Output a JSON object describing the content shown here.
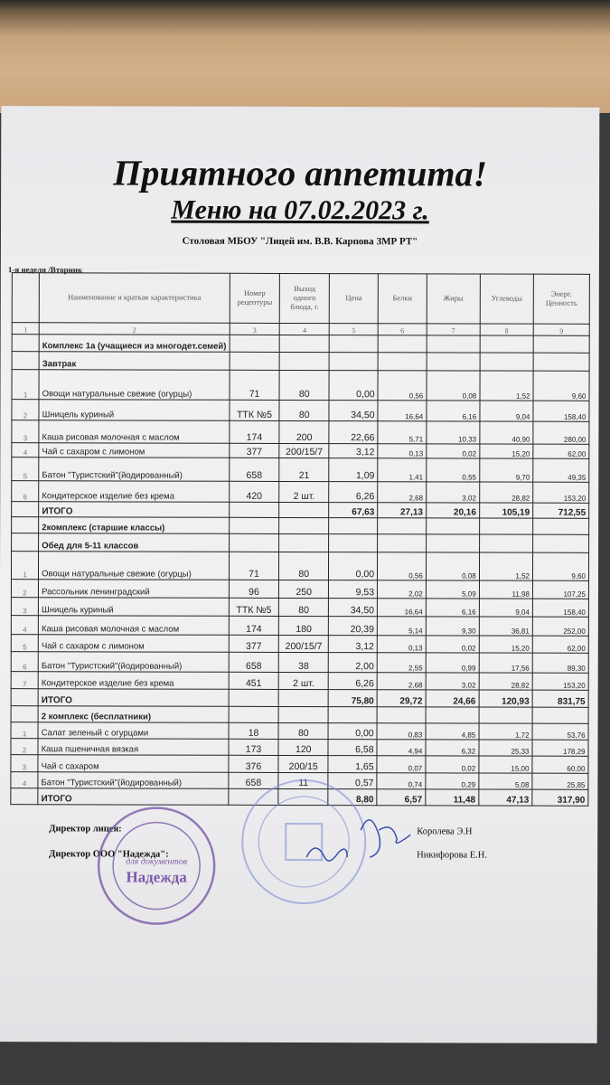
{
  "header": {
    "title": "Приятного аппетита!",
    "subtitle": "Меню на 07.02.2023 г.",
    "org": "Столовая МБОУ \"Лицей им. В.В. Карпова ЗМР РТ\"",
    "week": "1-я неделя /Вторник"
  },
  "table": {
    "columns": [
      "",
      "Наименование и краткая характеристика",
      "Номер рецептуры",
      "Выход одного блюда, г.",
      "Цена",
      "Белки",
      "Жиры",
      "Углеводы",
      "Энерг. Ценность"
    ],
    "column_numbers": [
      "1",
      "2",
      "3",
      "4",
      "5",
      "6",
      "7",
      "8",
      "9"
    ],
    "rows": [
      {
        "type": "sec",
        "name": "Комплекс 1а  (учащиеся из многодет.семей)"
      },
      {
        "type": "sec",
        "name": "Завтрак"
      },
      {
        "type": "item",
        "n": "1",
        "name": "Овощи натуральные свежие (огурцы)",
        "rec": "71",
        "out": "80",
        "price": "0,00",
        "p": "0,56",
        "f": "0,08",
        "c": "1,52",
        "e": "9,60"
      },
      {
        "type": "item",
        "n": "2",
        "name": "Шницель куриный",
        "rec": "ТТК №5",
        "out": "80",
        "price": "34,50",
        "p": "16,64",
        "f": "6,16",
        "c": "9,04",
        "e": "158,40"
      },
      {
        "type": "item",
        "n": "3",
        "name": "Каша рисовая молочная с маслом",
        "rec": "174",
        "out": "200",
        "price": "22,66",
        "p": "5,71",
        "f": "10,33",
        "c": "40,90",
        "e": "280,00"
      },
      {
        "type": "item",
        "n": "4",
        "name": "Чай с сахаром с лимоном",
        "rec": "377",
        "out": "200/15/7",
        "price": "3,12",
        "p": "0,13",
        "f": "0,02",
        "c": "15,20",
        "e": "62,00"
      },
      {
        "type": "item",
        "n": "5",
        "name": "Батон \"Туристский\"(йодированный)",
        "rec": "658",
        "out": "21",
        "price": "1,09",
        "p": "1,41",
        "f": "0,55",
        "c": "9,70",
        "e": "49,35"
      },
      {
        "type": "item",
        "n": "6",
        "name": "Кондитерское изделие без крема",
        "rec": "420",
        "out": "2 шт.",
        "price": "6,26",
        "p": "2,68",
        "f": "3,02",
        "c": "28,82",
        "e": "153,20"
      },
      {
        "type": "tot",
        "name": "ИТОГО",
        "price": "67,63",
        "p": "27,13",
        "f": "20,16",
        "c": "105,19",
        "e": "712,55"
      },
      {
        "type": "sec",
        "name": "2комплекс (старшие классы)"
      },
      {
        "type": "sec",
        "name": "Обед для 5-11 классов"
      },
      {
        "type": "item",
        "n": "1",
        "name": "Овощи натуральные свежие (огурцы)",
        "rec": "71",
        "out": "80",
        "price": "0,00",
        "p": "0,56",
        "f": "0,08",
        "c": "1,52",
        "e": "9,60"
      },
      {
        "type": "item",
        "n": "2",
        "name": "Рассольник ленинградский",
        "rec": "96",
        "out": "250",
        "price": "9,53",
        "p": "2,02",
        "f": "5,09",
        "c": "11,98",
        "e": "107,25"
      },
      {
        "type": "item",
        "n": "3",
        "name": "Шницель куриный",
        "rec": "ТТК №5",
        "out": "80",
        "price": "34,50",
        "p": "16,64",
        "f": "6,16",
        "c": "9,04",
        "e": "158,40"
      },
      {
        "type": "item",
        "n": "4",
        "name": "Каша рисовая молочная с маслом",
        "rec": "174",
        "out": "180",
        "price": "20,39",
        "p": "5,14",
        "f": "9,30",
        "c": "36,81",
        "e": "252,00"
      },
      {
        "type": "item",
        "n": "5",
        "name": "Чай с сахаром с лимоном",
        "rec": "377",
        "out": "200/15/7",
        "price": "3,12",
        "p": "0,13",
        "f": "0,02",
        "c": "15,20",
        "e": "62,00"
      },
      {
        "type": "item",
        "n": "6",
        "name": "Батон \"Туристский\"(йодированный)",
        "rec": "658",
        "out": "38",
        "price": "2,00",
        "p": "2,55",
        "f": "0,99",
        "c": "17,56",
        "e": "89,30"
      },
      {
        "type": "item",
        "n": "7",
        "name": "Кондитерское изделие без крема",
        "rec": "451",
        "out": "2 шт.",
        "price": "6,26",
        "p": "2,68",
        "f": "3,02",
        "c": "28,82",
        "e": "153,20"
      },
      {
        "type": "tot",
        "name": "ИТОГО",
        "price": "75,80",
        "p": "29,72",
        "f": "24,66",
        "c": "120,93",
        "e": "831,75"
      },
      {
        "type": "sec",
        "name": "2 комплекс (бесплатники)"
      },
      {
        "type": "item",
        "n": "1",
        "name": "Салат зеленый с огурцами",
        "rec": "18",
        "out": "80",
        "price": "0,00",
        "p": "0,83",
        "f": "4,85",
        "c": "1,72",
        "e": "53,76"
      },
      {
        "type": "item",
        "n": "2",
        "name": "Каша пшеничная вязкая",
        "rec": "173",
        "out": "120",
        "price": "6,58",
        "p": "4,94",
        "f": "6,32",
        "c": "25,33",
        "e": "178,29"
      },
      {
        "type": "item",
        "n": "3",
        "name": "Чай с сахаром",
        "rec": "376",
        "out": "200/15",
        "price": "1,65",
        "p": "0,07",
        "f": "0,02",
        "c": "15,00",
        "e": "60,00"
      },
      {
        "type": "item",
        "n": "4",
        "name": "Батон \"Туристский\"(йодированный)",
        "rec": "658",
        "out": "11",
        "price": "0,57",
        "p": "0,74",
        "f": "0,29",
        "c": "5,08",
        "e": "25,85"
      },
      {
        "type": "tot",
        "name": "ИТОГО",
        "price": "8,80",
        "p": "6,57",
        "f": "11,48",
        "c": "47,13",
        "e": "317,90"
      }
    ]
  },
  "signatures": {
    "director_school_label": "Директор  лицея:",
    "director_school_name": "Королева Э.Н",
    "director_company_label": "Директор ООО \"Надежда\":",
    "director_company_name": "Никифорова Е.Н."
  },
  "stamps": {
    "company_stamp_text": "Надежда",
    "company_stamp_sub": "для документов"
  },
  "colors": {
    "stamp_purple": "#7a5aa8",
    "stamp_blue": "#7f8fd0",
    "ink": "#3a4cae"
  }
}
